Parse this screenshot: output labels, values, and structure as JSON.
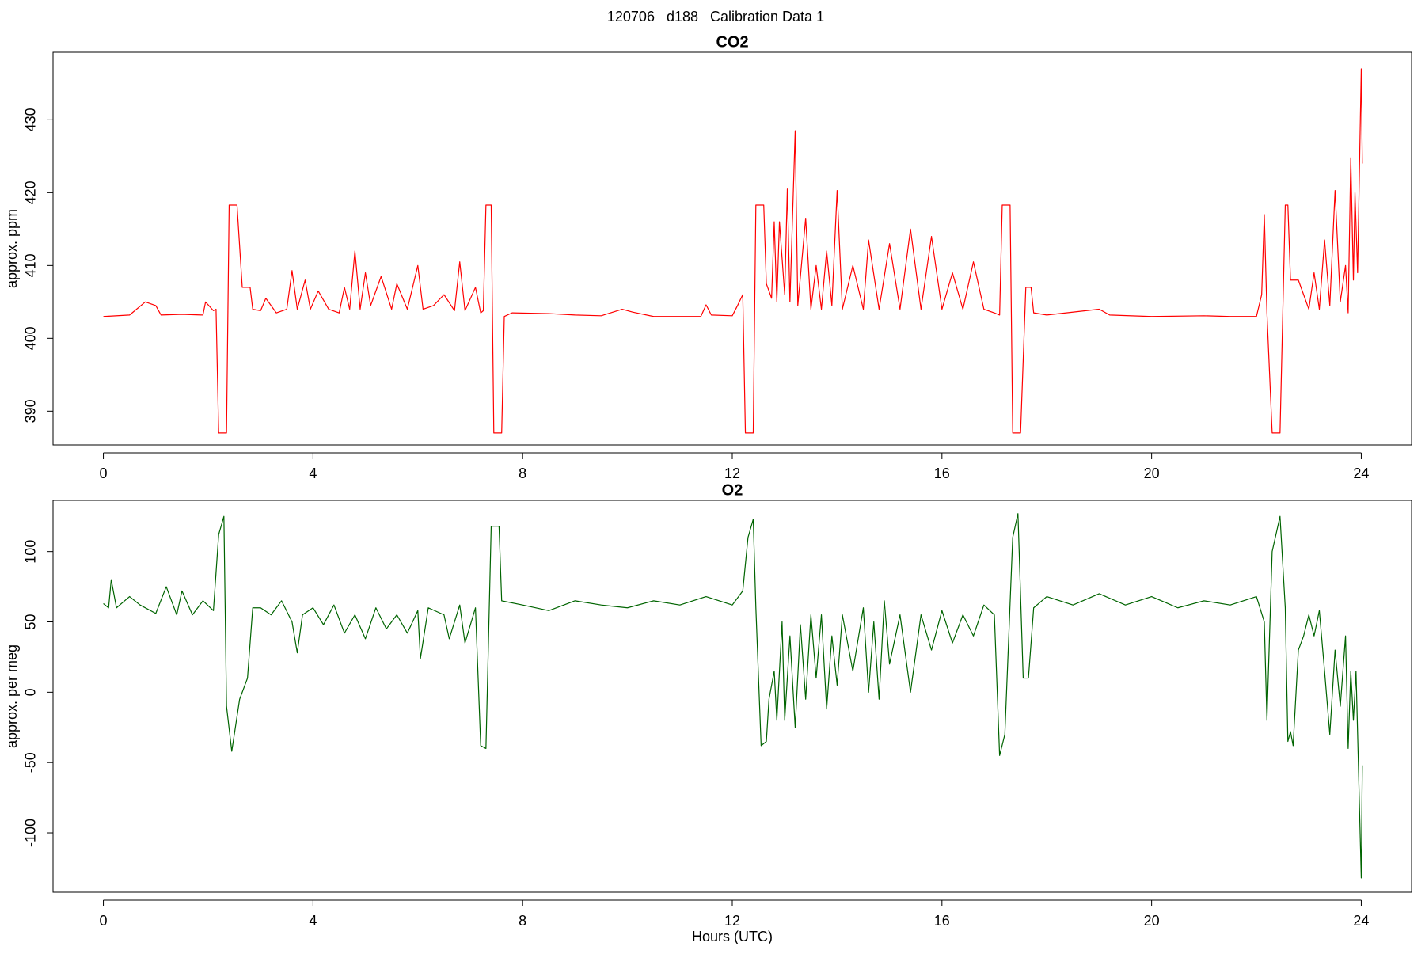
{
  "title": "120706   d188   Calibration Data 1",
  "chart_data": [
    {
      "type": "line",
      "title": "CO2",
      "y_label": "approx. ppm",
      "color": "#ff0000",
      "xlim": [
        -0.96,
        24.96
      ],
      "xticks": [
        0,
        4,
        8,
        12,
        16,
        20,
        24
      ],
      "ylim": [
        385.36,
        439.28
      ],
      "yticks": [
        390,
        400,
        410,
        420,
        430
      ],
      "x": [
        0,
        0.5,
        0.8,
        1.0,
        1.1,
        1.5,
        1.9,
        1.95,
        2.1,
        2.15,
        2.2,
        2.35,
        2.4,
        2.55,
        2.65,
        2.8,
        2.85,
        3.0,
        3.1,
        3.3,
        3.5,
        3.6,
        3.7,
        3.85,
        3.95,
        4.1,
        4.3,
        4.5,
        4.6,
        4.7,
        4.8,
        4.9,
        5.0,
        5.1,
        5.3,
        5.5,
        5.6,
        5.8,
        6.0,
        6.1,
        6.3,
        6.5,
        6.7,
        6.8,
        6.9,
        7.1,
        7.2,
        7.25,
        7.3,
        7.4,
        7.45,
        7.6,
        7.65,
        7.8,
        8.5,
        9.0,
        9.5,
        9.9,
        10.1,
        10.5,
        11.4,
        11.5,
        11.6,
        12.0,
        12.1,
        12.2,
        12.25,
        12.4,
        12.45,
        12.6,
        12.65,
        12.75,
        12.8,
        12.85,
        12.9,
        13.0,
        13.05,
        13.1,
        13.2,
        13.25,
        13.4,
        13.5,
        13.6,
        13.7,
        13.8,
        13.9,
        14.0,
        14.1,
        14.3,
        14.5,
        14.6,
        14.8,
        15.0,
        15.2,
        15.4,
        15.6,
        15.8,
        16.0,
        16.2,
        16.4,
        16.6,
        16.8,
        17.0,
        17.1,
        17.15,
        17.3,
        17.35,
        17.5,
        17.6,
        17.7,
        17.75,
        18.0,
        19.0,
        19.2,
        20.0,
        21.0,
        21.5,
        22.0,
        22.1,
        22.15,
        22.2,
        22.3,
        22.45,
        22.55,
        22.6,
        22.65,
        22.8,
        22.9,
        23.0,
        23.1,
        23.2,
        23.3,
        23.4,
        23.5,
        23.6,
        23.7,
        23.75,
        23.8,
        23.85,
        23.88,
        23.93,
        24.0,
        24.02
      ],
      "values": [
        403,
        403.2,
        405,
        404.5,
        403.2,
        403.3,
        403.2,
        405,
        403.8,
        404,
        387,
        387,
        418.3,
        418.3,
        407,
        407,
        404,
        403.8,
        405.5,
        403.5,
        404,
        409.3,
        404,
        408,
        404,
        406.5,
        404,
        403.5,
        407,
        404,
        412,
        404,
        409,
        404.5,
        408.5,
        404,
        407.5,
        404,
        410,
        404,
        404.5,
        406,
        403.8,
        410.5,
        403.8,
        407,
        403.5,
        403.8,
        418.3,
        418.3,
        387,
        387,
        403,
        403.5,
        403.4,
        403.2,
        403.1,
        404,
        403.6,
        403,
        403,
        404.6,
        403.2,
        403.1,
        404.5,
        406,
        387,
        387,
        418.3,
        418.3,
        407.5,
        405.5,
        416,
        405,
        416,
        406,
        420.5,
        405,
        428.5,
        404.5,
        416.5,
        404,
        410,
        404,
        412,
        404.5,
        420.3,
        404,
        410,
        404,
        413.5,
        404,
        413,
        404,
        415,
        404,
        414,
        404,
        409,
        404,
        410.5,
        404,
        403.5,
        403.2,
        418.3,
        418.3,
        387,
        387,
        407,
        407,
        403.5,
        403.2,
        404,
        403.2,
        403,
        403.1,
        403,
        403,
        406,
        417,
        403.5,
        387,
        387,
        418.3,
        418.3,
        408,
        408,
        406,
        404,
        409,
        404,
        413.5,
        404.5,
        420.3,
        405,
        410,
        403.5,
        424.8,
        408,
        420,
        409,
        437,
        424
      ]
    },
    {
      "type": "line",
      "title": "O2",
      "y_label": "approx. per meg",
      "x_label": "Hours (UTC)",
      "color": "#006400",
      "xlim": [
        -0.96,
        24.96
      ],
      "xticks": [
        0,
        4,
        8,
        12,
        16,
        20,
        24
      ],
      "ylim": [
        -142.2,
        136.4
      ],
      "yticks": [
        -100,
        -50,
        0,
        50,
        100
      ],
      "x": [
        0,
        0.1,
        0.15,
        0.25,
        0.5,
        0.7,
        1.0,
        1.2,
        1.4,
        1.5,
        1.7,
        1.9,
        2.1,
        2.2,
        2.3,
        2.35,
        2.45,
        2.6,
        2.75,
        2.85,
        3.0,
        3.2,
        3.4,
        3.6,
        3.7,
        3.8,
        4.0,
        4.2,
        4.4,
        4.6,
        4.8,
        5.0,
        5.2,
        5.4,
        5.6,
        5.8,
        6.0,
        6.05,
        6.2,
        6.5,
        6.6,
        6.8,
        6.9,
        7.1,
        7.2,
        7.3,
        7.4,
        7.55,
        7.6,
        8.0,
        8.5,
        9.0,
        9.5,
        10.0,
        10.5,
        11.0,
        11.5,
        12.0,
        12.2,
        12.3,
        12.4,
        12.45,
        12.55,
        12.65,
        12.7,
        12.8,
        12.85,
        12.95,
        13.0,
        13.1,
        13.2,
        13.3,
        13.4,
        13.5,
        13.6,
        13.7,
        13.8,
        13.9,
        14.0,
        14.1,
        14.3,
        14.5,
        14.6,
        14.7,
        14.8,
        14.9,
        15.0,
        15.2,
        15.4,
        15.6,
        15.8,
        16.0,
        16.2,
        16.4,
        16.6,
        16.8,
        17.0,
        17.1,
        17.2,
        17.35,
        17.45,
        17.55,
        17.65,
        17.75,
        18.0,
        18.5,
        19.0,
        19.5,
        20.0,
        20.5,
        21.0,
        21.5,
        22.0,
        22.15,
        22.2,
        22.3,
        22.45,
        22.55,
        22.6,
        22.65,
        22.7,
        22.8,
        22.9,
        23.0,
        23.1,
        23.2,
        23.3,
        23.4,
        23.5,
        23.6,
        23.7,
        23.75,
        23.8,
        23.85,
        23.9,
        24.0,
        24.02
      ],
      "values": [
        63,
        60,
        80,
        60,
        68,
        62,
        56,
        75,
        55,
        72,
        55,
        65,
        58,
        112,
        125,
        -10,
        -42,
        -5,
        10,
        60,
        60,
        55,
        65,
        50,
        28,
        55,
        60,
        48,
        62,
        42,
        55,
        38,
        60,
        45,
        55,
        42,
        58,
        24,
        60,
        55,
        38,
        62,
        35,
        60,
        -38,
        -40,
        118,
        118,
        65,
        62,
        58,
        65,
        62,
        60,
        65,
        62,
        68,
        62,
        72,
        110,
        123,
        60,
        -38,
        -35,
        -5,
        15,
        -20,
        50,
        -20,
        40,
        -25,
        48,
        -5,
        55,
        10,
        55,
        -12,
        40,
        5,
        55,
        15,
        60,
        0,
        50,
        -5,
        65,
        20,
        55,
        0,
        55,
        30,
        58,
        35,
        55,
        40,
        62,
        55,
        -45,
        -30,
        110,
        127,
        10,
        10,
        60,
        68,
        62,
        70,
        62,
        68,
        60,
        65,
        62,
        68,
        50,
        -20,
        100,
        125,
        60,
        -35,
        -28,
        -38,
        30,
        40,
        55,
        40,
        58,
        15,
        -30,
        30,
        -10,
        40,
        -40,
        15,
        -20,
        15,
        -132,
        -52
      ]
    }
  ]
}
